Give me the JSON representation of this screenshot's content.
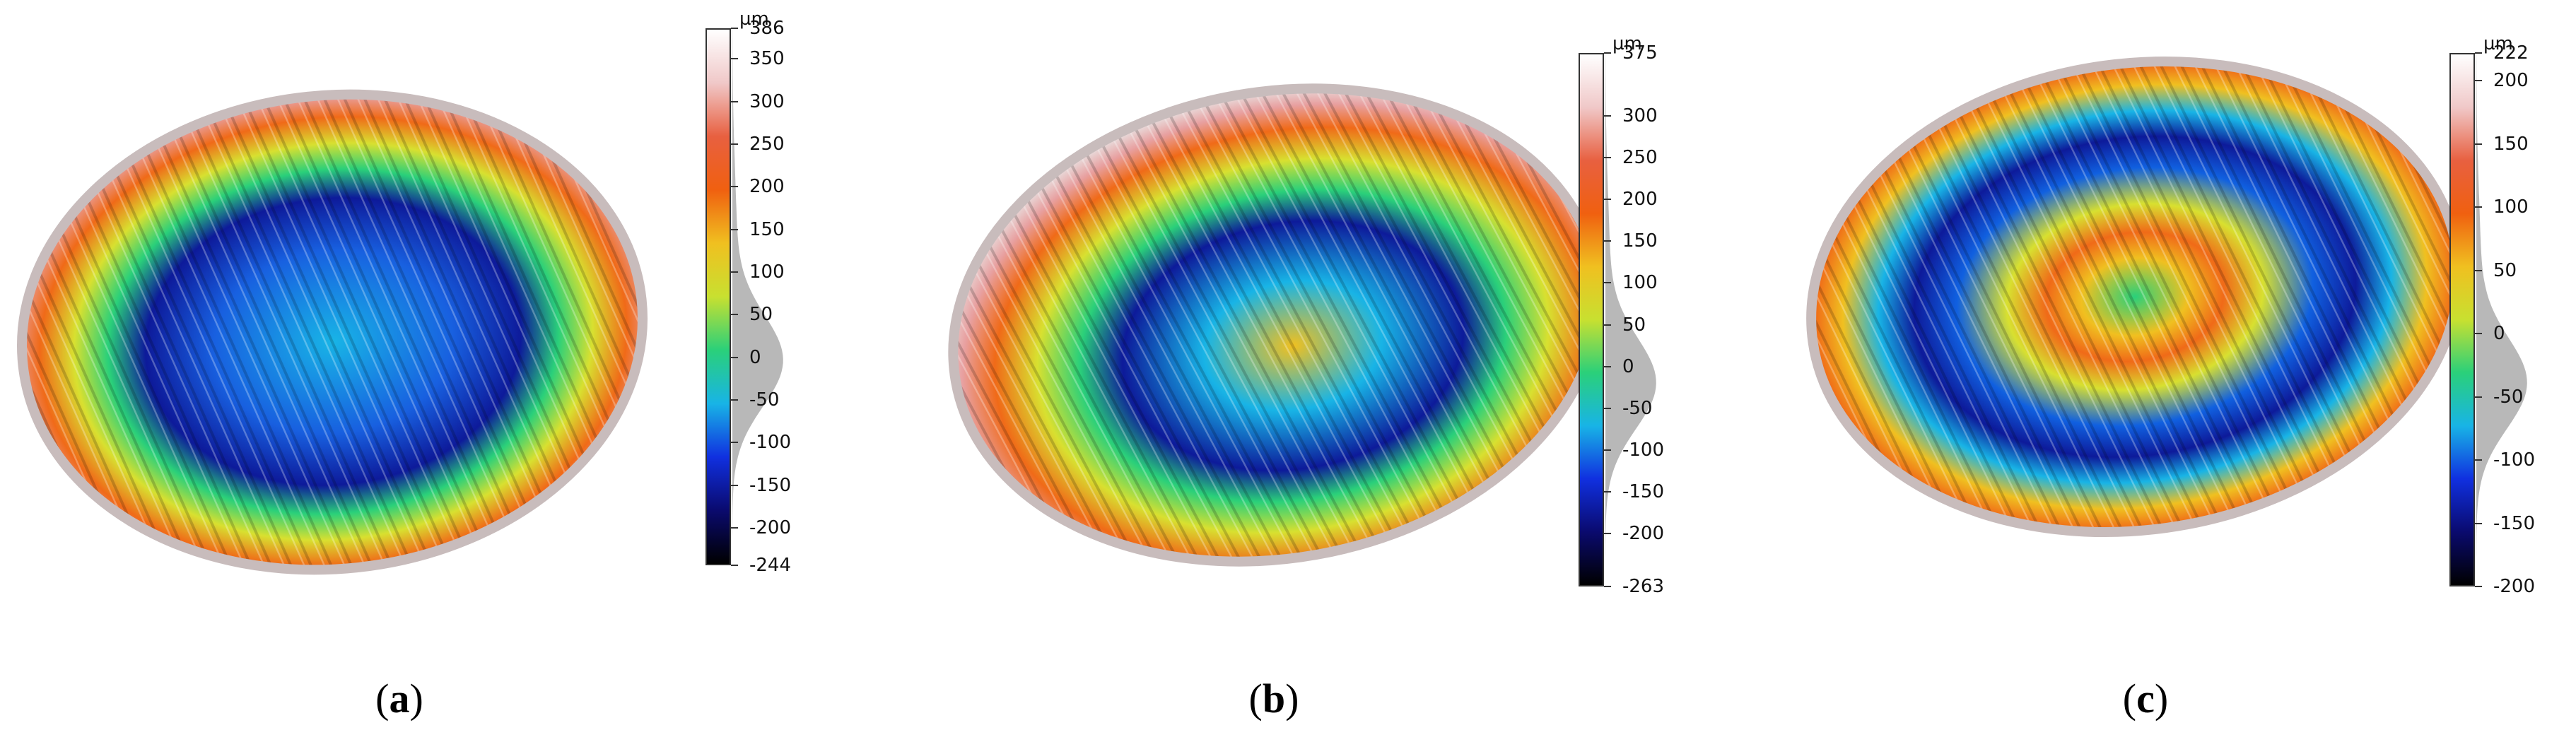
{
  "figure": {
    "panels": [
      {
        "id": "a",
        "caption_open": "(",
        "caption_letter": "a",
        "caption_close": ")",
        "colorbar": {
          "unit": "µm",
          "max": 386,
          "min": -244,
          "ticks": [
            "386",
            "350",
            "300",
            "250",
            "200",
            "150",
            "100",
            "50",
            "0",
            "-50",
            "-100",
            "-150",
            "-200",
            "-244"
          ],
          "tick_values": [
            386,
            350,
            300,
            250,
            200,
            150,
            100,
            50,
            0,
            -50,
            -100,
            -150,
            -200,
            -244
          ]
        }
      },
      {
        "id": "b",
        "caption_open": "(",
        "caption_letter": "b",
        "caption_close": ")",
        "colorbar": {
          "unit": "µm",
          "max": 375,
          "min": -263,
          "ticks": [
            "375",
            "300",
            "250",
            "200",
            "150",
            "100",
            "50",
            "0",
            "-50",
            "-100",
            "-150",
            "-200",
            "-263"
          ],
          "tick_values": [
            375,
            300,
            250,
            200,
            150,
            100,
            50,
            0,
            -50,
            -100,
            -150,
            -200,
            -263
          ]
        }
      },
      {
        "id": "c",
        "caption_open": "(",
        "caption_letter": "c",
        "caption_close": ")",
        "colorbar": {
          "unit": "µm",
          "max": 222,
          "min": -200,
          "ticks": [
            "222",
            "200",
            "150",
            "100",
            "50",
            "0",
            "-50",
            "-100",
            "-150",
            "-200"
          ],
          "tick_values": [
            222,
            200,
            150,
            100,
            50,
            0,
            -50,
            -100,
            -150,
            -200
          ]
        }
      }
    ],
    "colormap": [
      "#000000",
      "#0a0a6e",
      "#1030e0",
      "#18b4e6",
      "#2ad07a",
      "#c8e030",
      "#f0c020",
      "#f06010",
      "#e86040",
      "#f0c8c8",
      "#ffffff"
    ]
  }
}
